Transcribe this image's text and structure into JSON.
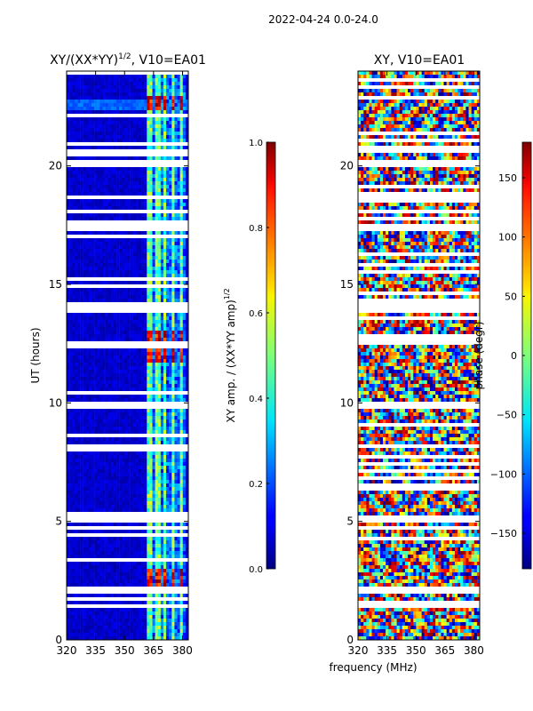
{
  "suptitle": "2022-04-24 0.0-24.0",
  "chart_data": [
    {
      "type": "heatmap",
      "title_main": "XY/(XX*YY)",
      "title_sup": "1/2",
      "title_rest": ", V10=EA01",
      "xlabel": "",
      "ylabel": "UT (hours)",
      "xlim": [
        320,
        383
      ],
      "ylim": [
        0,
        24
      ],
      "xticks": [
        "320",
        "335",
        "350",
        "365",
        "380"
      ],
      "xtick_values": [
        320,
        335,
        350,
        365,
        380
      ],
      "yticks": [
        "0",
        "5",
        "10",
        "15",
        "20"
      ],
      "ytick_values": [
        0,
        5,
        10,
        15,
        20
      ],
      "colorbar": {
        "label_main": "XY amp. / (XX*YY amp)",
        "label_sup": "1/2",
        "min": 0.0,
        "max": 1.0,
        "ticks": [
          "0.0",
          "0.2",
          "0.4",
          "0.6",
          "0.8",
          "1.0"
        ],
        "tick_values": [
          0.0,
          0.2,
          0.4,
          0.6,
          0.8,
          1.0
        ]
      },
      "colormap": "jet",
      "bright_channel_bands_mhz": [
        [
          362,
          364
        ],
        [
          366,
          368
        ],
        [
          370,
          372
        ],
        [
          374,
          376
        ],
        [
          378,
          380
        ]
      ],
      "high_amplitude_periods_hours": [
        [
          22.4,
          22.9
        ],
        [
          11.7,
          13.0
        ],
        [
          2.0,
          3.0
        ]
      ],
      "flagged_gaps_hours": [
        [
          17.2,
          17.6
        ],
        [
          20.0,
          20.2
        ],
        [
          13.8,
          14.2
        ],
        [
          9.8,
          10.0
        ],
        [
          5.0,
          5.2
        ],
        [
          2.0,
          2.2
        ],
        [
          1.3,
          1.5
        ]
      ]
    },
    {
      "type": "heatmap",
      "title_main": "XY, V10=EA01",
      "xlabel": "frequency (MHz)",
      "ylabel": "",
      "xlim": [
        320,
        383
      ],
      "ylim": [
        0,
        24
      ],
      "xticks": [
        "320",
        "335",
        "350",
        "365",
        "380"
      ],
      "xtick_values": [
        320,
        335,
        350,
        365,
        380
      ],
      "yticks": [
        "0",
        "5",
        "10",
        "15",
        "20"
      ],
      "ytick_values": [
        0,
        5,
        10,
        15,
        20
      ],
      "colorbar": {
        "label_main": "phase (degr)",
        "min": -180,
        "max": 180,
        "ticks": [
          "−150",
          "−100",
          "−50",
          "0",
          "50",
          "100",
          "150"
        ],
        "tick_values": [
          -150,
          -100,
          -50,
          0,
          50,
          100,
          150
        ]
      },
      "colormap": "jet",
      "flagged_gaps_hours": [
        [
          17.2,
          17.6
        ],
        [
          20.0,
          20.2
        ],
        [
          13.8,
          14.2
        ],
        [
          9.8,
          10.0
        ],
        [
          5.0,
          5.2
        ],
        [
          2.0,
          2.2
        ],
        [
          1.3,
          1.5
        ]
      ]
    }
  ]
}
